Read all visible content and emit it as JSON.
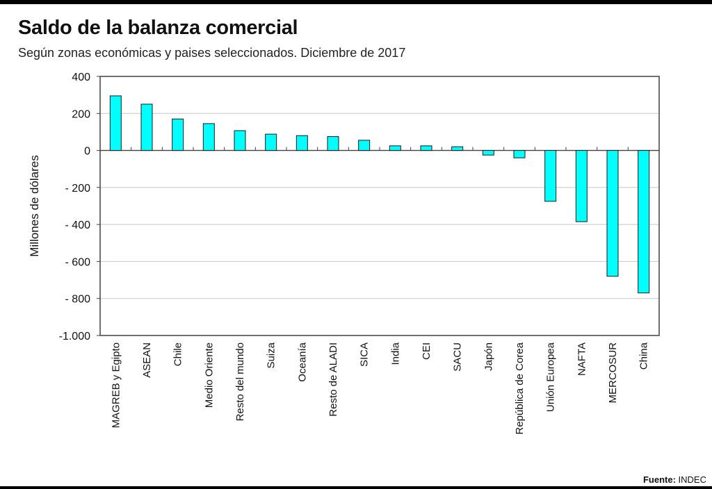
{
  "title": "Saldo de la balanza comercial",
  "subtitle": "Según zonas económicas y paises seleccionados. Diciembre de 2017",
  "source": {
    "label": "Fuente:",
    "value": "INDEC"
  },
  "colors": {
    "bar": "#00ffff",
    "bar_stroke": "#1a1a1a",
    "grid": "#c8c8c8",
    "axis": "#404040"
  },
  "chart_data": {
    "type": "bar",
    "title": "Saldo de la balanza comercial",
    "subtitle": "Según zonas económicas y paises seleccionados. Diciembre de 2017",
    "xlabel": "",
    "ylabel": "Millones de dólares",
    "ylim": [
      -1000,
      400
    ],
    "yticks": [
      400,
      200,
      0,
      -200,
      -400,
      -600,
      -800,
      -1000
    ],
    "ytick_labels": [
      "400",
      "200",
      "0",
      "- 200",
      "- 400",
      "- 600",
      "- 800",
      "-1.000"
    ],
    "grid": true,
    "categories": [
      "MAGREB y Egipto",
      "ASEAN",
      "Chile",
      "Medio Oriente",
      "Resto del mundo",
      "Suiza",
      "Oceanía",
      "Resto de ALADI",
      "SICA",
      "India",
      "CEI",
      "SACU",
      "Japón",
      "República de Corea",
      "Unión Europea",
      "NAFTA",
      "MERCOSUR",
      "China"
    ],
    "values": [
      295,
      250,
      170,
      145,
      107,
      88,
      80,
      75,
      55,
      25,
      25,
      20,
      -25,
      -40,
      -275,
      -385,
      -680,
      -770
    ]
  }
}
